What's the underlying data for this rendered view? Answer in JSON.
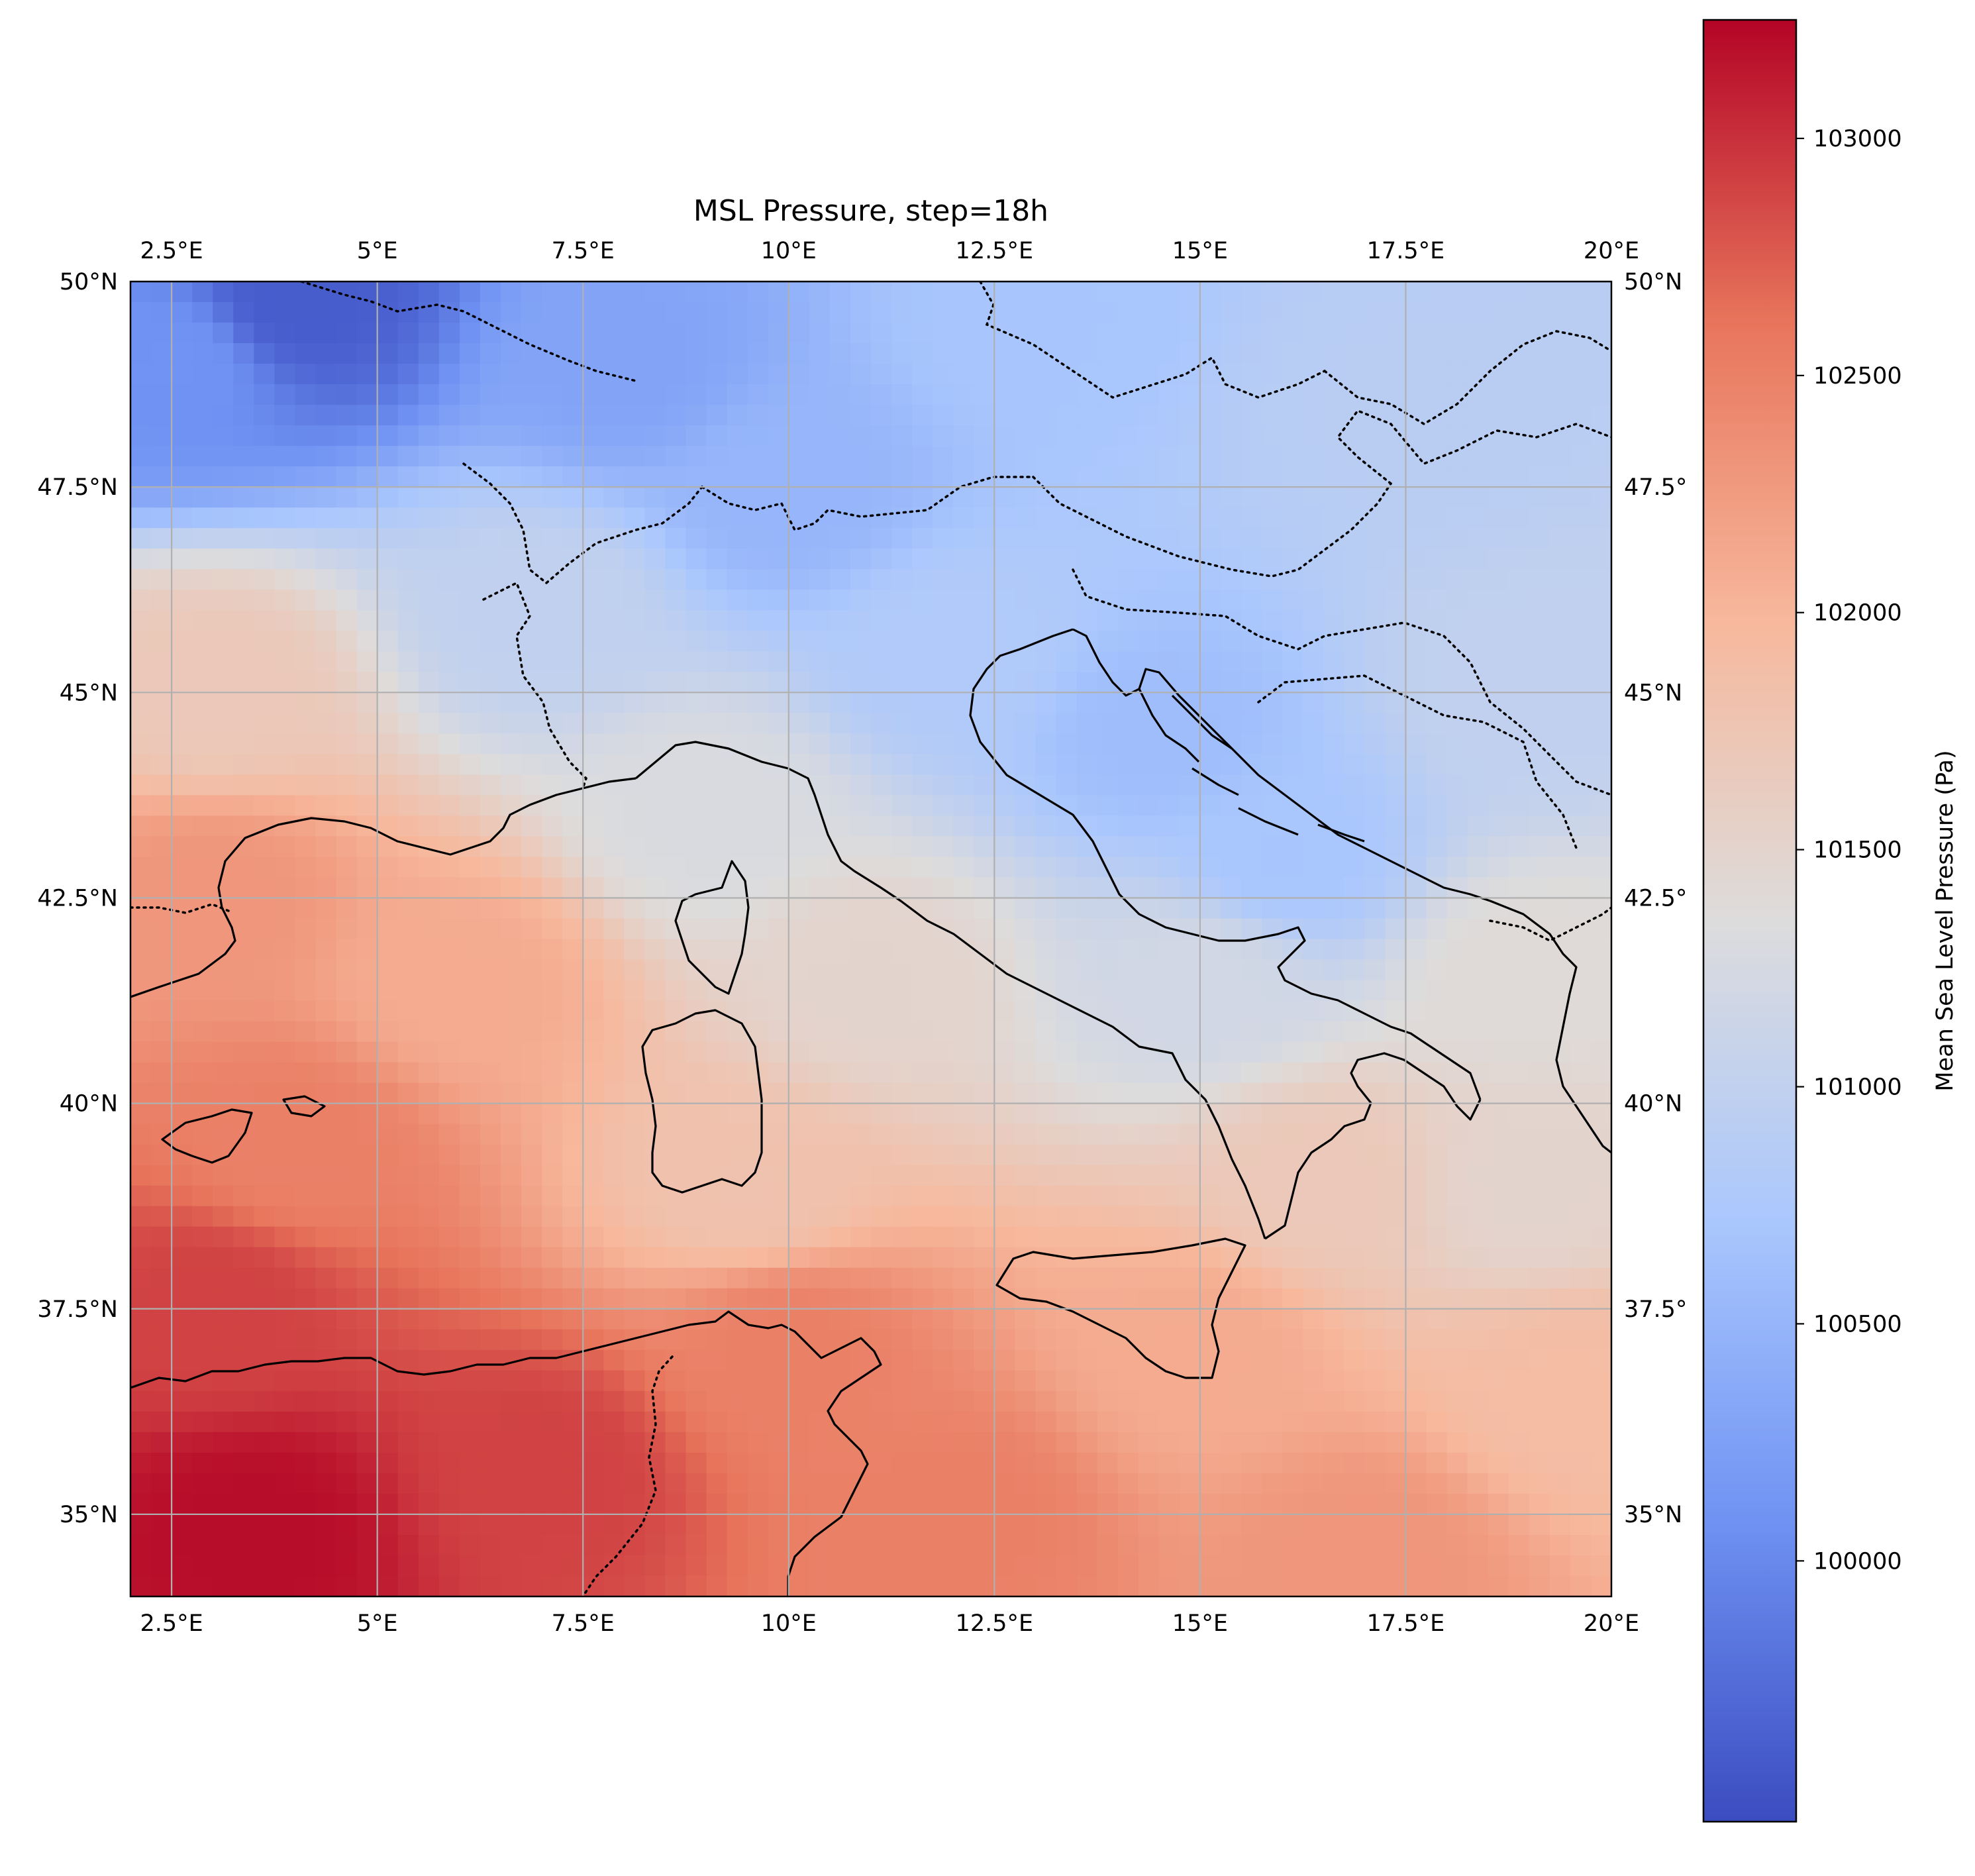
{
  "chart_data": {
    "type": "heatmap",
    "title": "MSL Pressure, step=18h",
    "xlim": [
      2,
      20
    ],
    "ylim": [
      34,
      50
    ],
    "x_ticks": [
      2.5,
      5,
      7.5,
      10,
      12.5,
      15,
      17.5,
      20
    ],
    "y_ticks": [
      35,
      37.5,
      40,
      42.5,
      45,
      47.5,
      50
    ],
    "x_tick_labels": [
      "2.5°E",
      "5°E",
      "7.5°E",
      "10°E",
      "12.5°E",
      "15°E",
      "17.5°E",
      "20°E"
    ],
    "y_tick_labels": [
      "35°N",
      "37.5°N",
      "40°N",
      "42.5°N",
      "45°N",
      "47.5°N",
      "50°N"
    ],
    "y_tick_labels_right": [
      "35°N",
      "37.5°",
      "40°N",
      "42.5°",
      "45°N",
      "47.5°",
      "50°N"
    ],
    "grid": true,
    "colorbar": {
      "label": "Mean Sea Level Pressure (Pa)",
      "range": [
        99450,
        103250
      ],
      "ticks": [
        100000,
        100500,
        101000,
        101500,
        102000,
        102500,
        103000
      ],
      "tick_labels": [
        "100000",
        "100500",
        "101000",
        "101500",
        "102000",
        "102500",
        "103000"
      ],
      "colormap": "coolwarm",
      "colors": [
        "#3b4cc0",
        "#6f92f3",
        "#aac7fd",
        "#dddcdc",
        "#f7b89c",
        "#e7745b",
        "#b40426"
      ]
    },
    "field_samples": [
      {
        "lon": 4,
        "lat": 49.8,
        "value": 99600
      },
      {
        "lon": 2.5,
        "lat": 49,
        "value": 100100
      },
      {
        "lon": 8,
        "lat": 49,
        "value": 100300
      },
      {
        "lon": 13,
        "lat": 49.5,
        "value": 100700
      },
      {
        "lon": 17.5,
        "lat": 48.5,
        "value": 100900
      },
      {
        "lon": 10,
        "lat": 47.5,
        "value": 100500
      },
      {
        "lon": 7,
        "lat": 46,
        "value": 101000
      },
      {
        "lon": 12,
        "lat": 45.5,
        "value": 100800
      },
      {
        "lon": 14.5,
        "lat": 44.5,
        "value": 100600
      },
      {
        "lon": 16,
        "lat": 43,
        "value": 100700
      },
      {
        "lon": 19,
        "lat": 45,
        "value": 101000
      },
      {
        "lon": 3,
        "lat": 45,
        "value": 101700
      },
      {
        "lon": 9,
        "lat": 43.5,
        "value": 101300
      },
      {
        "lon": 3,
        "lat": 42.5,
        "value": 102300
      },
      {
        "lon": 6,
        "lat": 41.5,
        "value": 102100
      },
      {
        "lon": 11,
        "lat": 41.5,
        "value": 101500
      },
      {
        "lon": 15,
        "lat": 41.5,
        "value": 101200
      },
      {
        "lon": 19,
        "lat": 41.5,
        "value": 101400
      },
      {
        "lon": 4,
        "lat": 39.5,
        "value": 102500
      },
      {
        "lon": 9.5,
        "lat": 39,
        "value": 101800
      },
      {
        "lon": 16.5,
        "lat": 39,
        "value": 101700
      },
      {
        "lon": 19,
        "lat": 39,
        "value": 101500
      },
      {
        "lon": 3,
        "lat": 37.5,
        "value": 102900
      },
      {
        "lon": 10,
        "lat": 37,
        "value": 102500
      },
      {
        "lon": 15,
        "lat": 37,
        "value": 102100
      },
      {
        "lon": 19.5,
        "lat": 36.5,
        "value": 101900
      },
      {
        "lon": 3.5,
        "lat": 34.8,
        "value": 103200
      },
      {
        "lon": 7,
        "lat": 35.5,
        "value": 102900
      },
      {
        "lon": 12,
        "lat": 35,
        "value": 102500
      },
      {
        "lon": 17,
        "lat": 34.5,
        "value": 102300
      }
    ]
  }
}
